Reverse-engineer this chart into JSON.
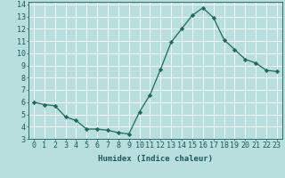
{
  "x": [
    0,
    1,
    2,
    3,
    4,
    5,
    6,
    7,
    8,
    9,
    10,
    11,
    12,
    13,
    14,
    15,
    16,
    17,
    18,
    19,
    20,
    21,
    22,
    23
  ],
  "y": [
    6.0,
    5.8,
    5.7,
    4.8,
    4.5,
    3.8,
    3.8,
    3.7,
    3.5,
    3.4,
    5.2,
    6.6,
    8.7,
    10.9,
    12.0,
    13.1,
    13.7,
    12.9,
    11.1,
    10.3,
    9.5,
    9.2,
    8.6,
    8.5
  ],
  "line_color": "#1a6b5a",
  "marker": "D",
  "marker_size": 2.2,
  "background_color": "#b8dede",
  "grid_color": "#ffffff",
  "xlabel": "Humidex (Indice chaleur)",
  "xlim": [
    -0.5,
    23.5
  ],
  "ylim": [
    3,
    14.2
  ],
  "yticks": [
    3,
    4,
    5,
    6,
    7,
    8,
    9,
    10,
    11,
    12,
    13,
    14
  ],
  "xticks": [
    0,
    1,
    2,
    3,
    4,
    5,
    6,
    7,
    8,
    9,
    10,
    11,
    12,
    13,
    14,
    15,
    16,
    17,
    18,
    19,
    20,
    21,
    22,
    23
  ],
  "xtick_labels": [
    "0",
    "1",
    "2",
    "3",
    "4",
    "5",
    "6",
    "7",
    "8",
    "9",
    "10",
    "11",
    "12",
    "13",
    "14",
    "15",
    "16",
    "17",
    "18",
    "19",
    "20",
    "21",
    "22",
    "23"
  ],
  "font_color": "#1a5a5a",
  "label_fontsize": 6.5,
  "tick_fontsize": 6.0
}
